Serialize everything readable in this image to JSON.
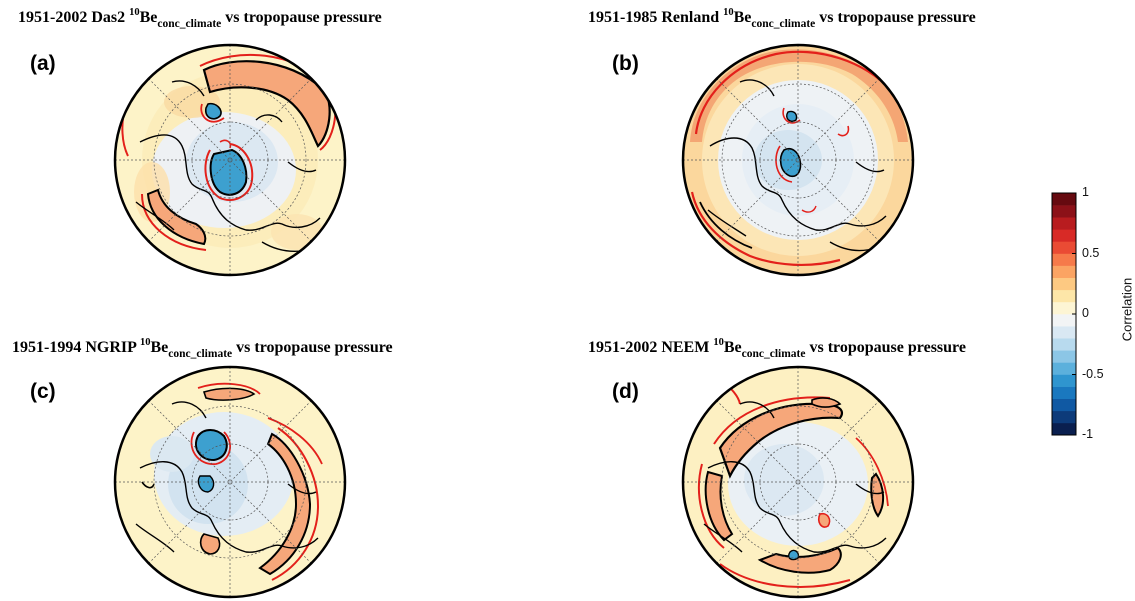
{
  "panels": [
    {
      "letter": "(a)",
      "period": "1951-2002",
      "core": "Das2",
      "isotope_mass": "10",
      "element": "Be",
      "subscript": "conc_climate",
      "tail": "vs tropopause pressure"
    },
    {
      "letter": "(b)",
      "period": "1951-1985",
      "core": "Renland",
      "isotope_mass": "10",
      "element": "Be",
      "subscript": "conc_climate",
      "tail": "vs tropopause pressure"
    },
    {
      "letter": "(c)",
      "period": "1951-1994",
      "core": "NGRIP",
      "isotope_mass": "10",
      "element": "Be",
      "subscript": "conc_climate",
      "tail": "vs tropopause pressure"
    },
    {
      "letter": "(d)",
      "period": "1951-2002",
      "core": "NEEM",
      "isotope_mass": "10",
      "element": "Be",
      "subscript": "conc_climate",
      "tail": "vs tropopause pressure"
    }
  ],
  "colorbar": {
    "title": "Correlation",
    "tick_labels": [
      "1",
      "0.5",
      "0",
      "-0.5",
      "-1"
    ],
    "ticks": [
      1,
      0.5,
      0,
      -0.5,
      -1
    ],
    "range": [
      -1,
      1
    ],
    "colors": [
      "#0a1f4f",
      "#0d3b7a",
      "#1059a3",
      "#1a78bf",
      "#2f95cf",
      "#5cb0dc",
      "#8cc6e6",
      "#b8daee",
      "#d9e8f3",
      "#f2f4f5",
      "#fdf5d4",
      "#fde6a8",
      "#fdc982",
      "#fba463",
      "#f67a4a",
      "#ea4b34",
      "#d82a26",
      "#b81c1f",
      "#8c1118",
      "#660a10"
    ]
  },
  "chart_data": [
    {
      "type": "heatmap",
      "panel": "(a)",
      "projection": "north polar stereographic",
      "variable": "correlation",
      "contours": [
        "black",
        "red"
      ]
    },
    {
      "type": "heatmap",
      "panel": "(b)",
      "projection": "north polar stereographic",
      "variable": "correlation",
      "contours": [
        "black",
        "red"
      ]
    },
    {
      "type": "heatmap",
      "panel": "(c)",
      "projection": "north polar stereographic",
      "variable": "correlation",
      "contours": [
        "black",
        "red"
      ]
    },
    {
      "type": "heatmap",
      "panel": "(d)",
      "projection": "north polar stereographic",
      "variable": "correlation",
      "contours": [
        "black",
        "red"
      ]
    }
  ]
}
